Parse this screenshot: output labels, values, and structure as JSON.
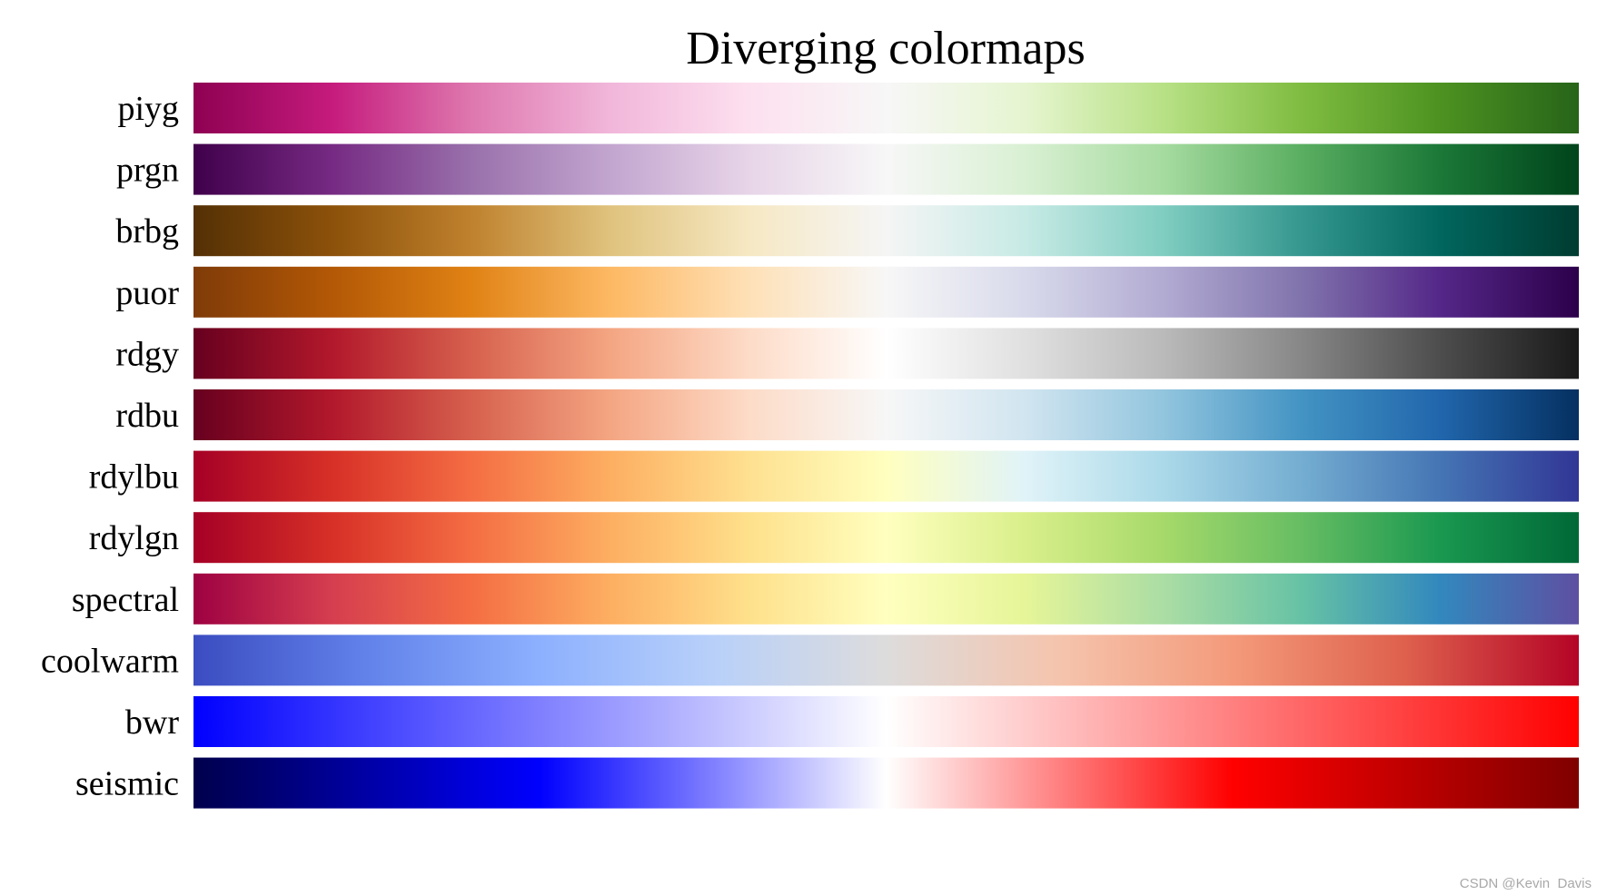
{
  "title": "Diverging colormaps",
  "colormaps": [
    {
      "name": "piyg",
      "colors": [
        "#8e0152",
        "#c51b7d",
        "#de77ae",
        "#f1b6da",
        "#fde0ef",
        "#f7f7f7",
        "#e6f5d0",
        "#b8e186",
        "#7fbc41",
        "#4d9221",
        "#276419"
      ]
    },
    {
      "name": "prgn",
      "colors": [
        "#40004b",
        "#762a83",
        "#9970ab",
        "#c2a5cf",
        "#e7d4e8",
        "#f7f7f7",
        "#d9f0d3",
        "#a6dba0",
        "#5aae61",
        "#1b7837",
        "#00441b"
      ]
    },
    {
      "name": "brbg",
      "colors": [
        "#543005",
        "#8c510a",
        "#bf812d",
        "#dfc27d",
        "#f6e8c3",
        "#f5f5f5",
        "#c7eae5",
        "#80cdc1",
        "#35978f",
        "#01665e",
        "#003c30"
      ]
    },
    {
      "name": "puor",
      "colors": [
        "#7f3b08",
        "#b35806",
        "#e08214",
        "#fdb863",
        "#fee0b6",
        "#f7f7f7",
        "#d8daeb",
        "#b2abd2",
        "#8073ac",
        "#542788",
        "#2d004b"
      ]
    },
    {
      "name": "rdgy",
      "colors": [
        "#67001f",
        "#b2182b",
        "#d6604d",
        "#f4a582",
        "#fddbc7",
        "#ffffff",
        "#e0e0e0",
        "#bababa",
        "#878787",
        "#4d4d4d",
        "#1a1a1a"
      ]
    },
    {
      "name": "rdbu",
      "colors": [
        "#67001f",
        "#b2182b",
        "#d6604d",
        "#f4a582",
        "#fddbc7",
        "#f7f7f7",
        "#d1e5f0",
        "#92c5de",
        "#4393c3",
        "#2166ac",
        "#053061"
      ]
    },
    {
      "name": "rdylbu",
      "colors": [
        "#a50026",
        "#d73027",
        "#f46d43",
        "#fdae61",
        "#fee090",
        "#ffffbf",
        "#e0f3f8",
        "#abd9e9",
        "#74add1",
        "#4575b4",
        "#313695"
      ]
    },
    {
      "name": "rdylgn",
      "colors": [
        "#a50026",
        "#d73027",
        "#f46d43",
        "#fdae61",
        "#fee08b",
        "#ffffbf",
        "#d9ef8b",
        "#a6d96a",
        "#66bd63",
        "#1a9850",
        "#006837"
      ]
    },
    {
      "name": "spectral",
      "colors": [
        "#9e0142",
        "#d53e4f",
        "#f46d43",
        "#fdae61",
        "#fee08b",
        "#ffffbf",
        "#e6f598",
        "#abdda4",
        "#66c2a5",
        "#3288bd",
        "#5e4fa2"
      ]
    },
    {
      "name": "coolwarm",
      "colors": [
        "#3b4cc0",
        "#6282ea",
        "#8db0fe",
        "#b8d0f9",
        "#dddcdc",
        "#f5c4ad",
        "#f49a7b",
        "#de604d",
        "#b40426"
      ]
    },
    {
      "name": "bwr",
      "colors": [
        "#0000ff",
        "#ffffff",
        "#ff0000"
      ]
    },
    {
      "name": "seismic",
      "colors": [
        "#00004c",
        "#0000ff",
        "#ffffff",
        "#ff0000",
        "#7f0000"
      ]
    }
  ],
  "watermark": "CSDN @Kevin  Davis"
}
